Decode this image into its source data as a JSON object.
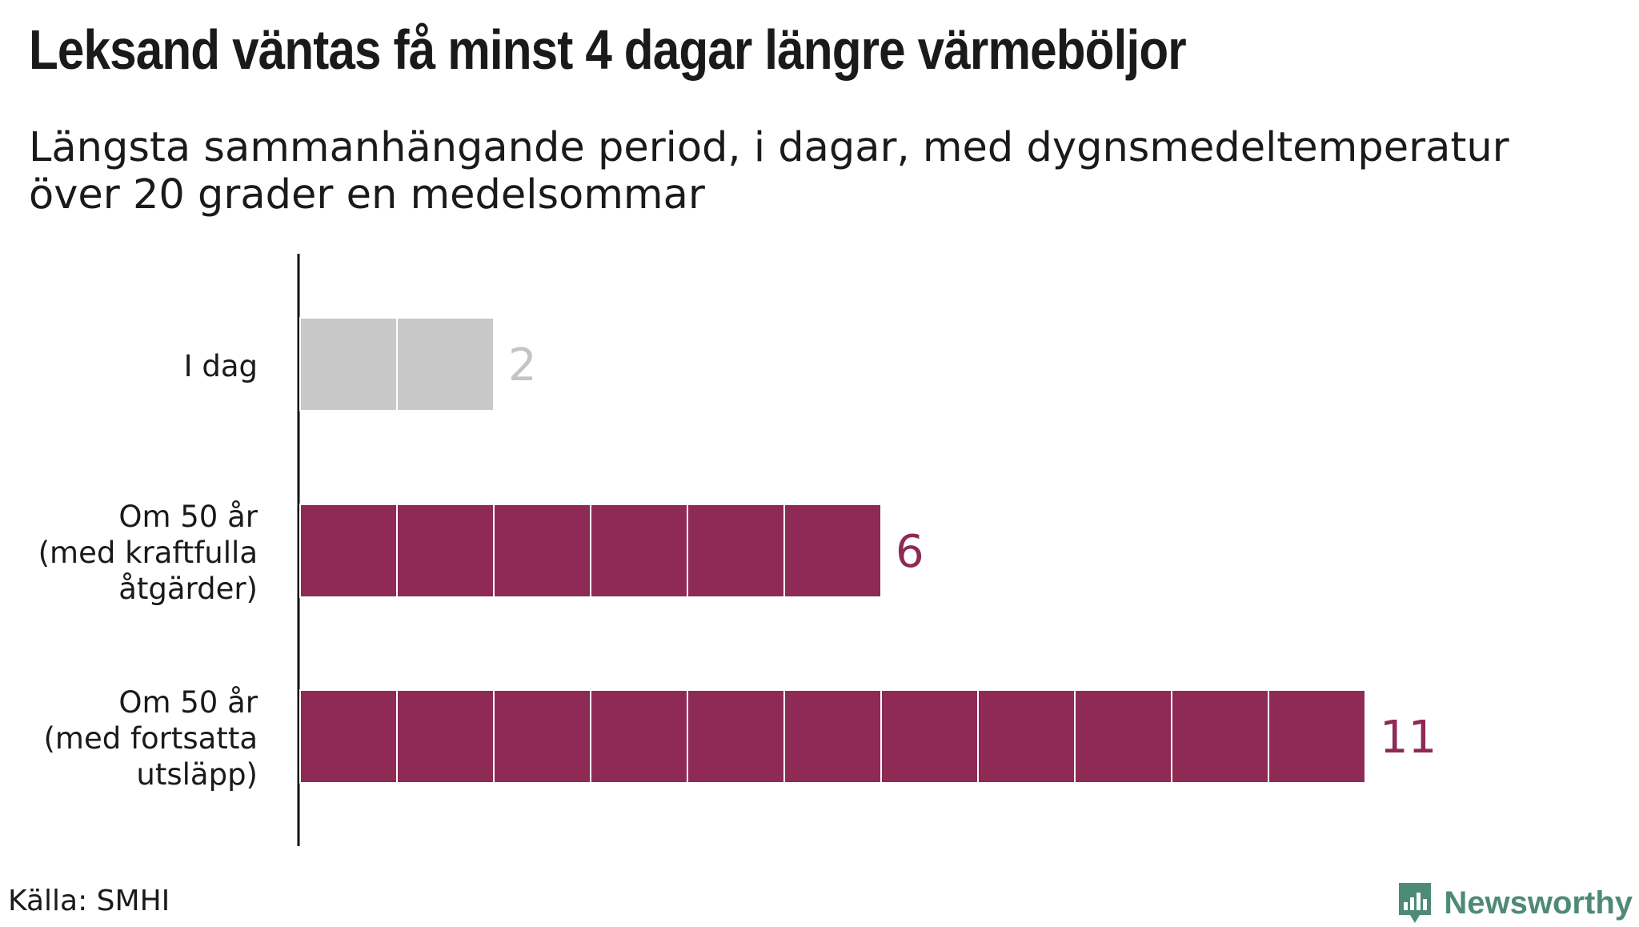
{
  "header": {
    "title": "Leksand väntas få minst 4 dagar längre värmeböljor",
    "subtitle": "Längsta sammanhängande period, i dagar, med dygnsmedeltemperatur över 20 grader en medelsommar"
  },
  "footer": {
    "source": "Källa: SMHI",
    "brand": "Newsworthy",
    "brand_icon": "bar-chart-badge-icon",
    "brand_color": "#4e8a78"
  },
  "chart_data": {
    "type": "bar",
    "orientation": "horizontal",
    "unit_blocks": true,
    "categories": [
      [
        "I dag"
      ],
      [
        "Om 50 år",
        "(med kraftfulla",
        "åtgärder)"
      ],
      [
        "Om 50 år",
        "(med fortsatta",
        "utsläpp)"
      ]
    ],
    "values": [
      2,
      6,
      11
    ],
    "data_labels": [
      "2",
      "6",
      "11"
    ],
    "colors": [
      "#c8c8c8",
      "#8e2a55",
      "#8e2a55"
    ],
    "xlim": [
      0,
      11
    ],
    "grid": false
  }
}
